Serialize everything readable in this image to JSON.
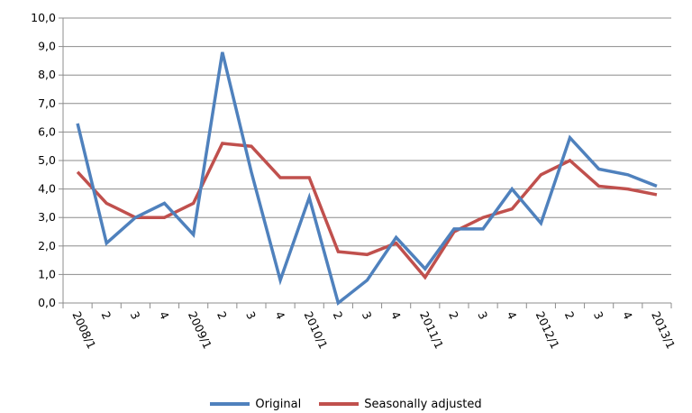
{
  "chart_data": {
    "type": "line",
    "title": "",
    "xlabel": "",
    "ylabel": "",
    "categories": [
      "2008/1",
      "2",
      "3",
      "4",
      "2009/1",
      "2",
      "3",
      "4",
      "2010/1",
      "2",
      "3",
      "4",
      "2011/1",
      "2",
      "3",
      "4",
      "2012/1",
      "2",
      "3",
      "4",
      "2013/1"
    ],
    "ylim": [
      0,
      10
    ],
    "yticks": [
      "0,0",
      "1,0",
      "2,0",
      "3,0",
      "4,0",
      "5,0",
      "6,0",
      "7,0",
      "8,0",
      "9,0",
      "10,0"
    ],
    "grid": "horizontal",
    "legend_position": "bottom",
    "series": [
      {
        "name": "Original",
        "color": "#4f81bd",
        "values": [
          6.3,
          2.1,
          3.0,
          3.5,
          2.4,
          8.8,
          4.6,
          0.8,
          3.7,
          0.0,
          0.8,
          2.3,
          1.2,
          2.6,
          2.6,
          4.0,
          2.8,
          5.8,
          4.7,
          4.5,
          4.1
        ]
      },
      {
        "name": "Seasonally adjusted",
        "color": "#c0504d",
        "values": [
          4.6,
          3.5,
          3.0,
          3.0,
          3.5,
          5.6,
          5.5,
          4.4,
          4.4,
          1.8,
          1.7,
          2.1,
          0.9,
          2.5,
          3.0,
          3.3,
          4.5,
          5.0,
          4.1,
          4.0,
          3.8
        ]
      }
    ]
  }
}
